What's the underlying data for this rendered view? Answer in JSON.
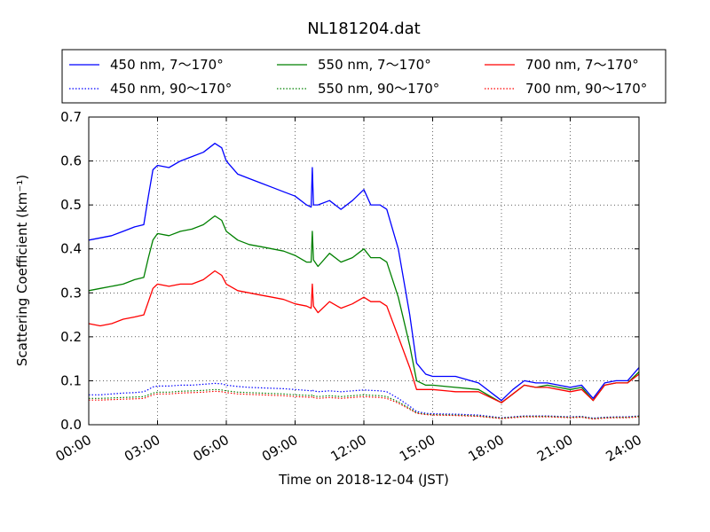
{
  "chart_data": {
    "type": "line",
    "title": "NL181204.dat",
    "xlabel": "Time on 2018-12-04 (JST)",
    "ylabel": "Scattering Coefficient (km⁻¹)",
    "xlim": [
      "00:00",
      "24:00"
    ],
    "ylim": [
      0.0,
      0.7
    ],
    "x_ticks": [
      "00:00",
      "03:00",
      "06:00",
      "09:00",
      "12:00",
      "15:00",
      "18:00",
      "21:00",
      "24:00"
    ],
    "y_ticks": [
      "0.0",
      "0.1",
      "0.2",
      "0.3",
      "0.4",
      "0.5",
      "0.6",
      "0.7"
    ],
    "grid": true,
    "legend_position": "top (above plot)",
    "x_hours": [
      0,
      0.5,
      1,
      1.5,
      2,
      2.4,
      2.6,
      2.8,
      3,
      3.5,
      4,
      4.5,
      5,
      5.5,
      5.8,
      6,
      6.5,
      7,
      7.5,
      8,
      8.5,
      9,
      9.5,
      9.7,
      9.75,
      9.8,
      10,
      10.5,
      11,
      11.5,
      12,
      12.3,
      12.7,
      13,
      13.5,
      14,
      14.3,
      14.7,
      15,
      16,
      17,
      18,
      18.5,
      19,
      19.5,
      20,
      20.5,
      21,
      21.5,
      22,
      22.5,
      23,
      23.5,
      24
    ],
    "series": [
      {
        "name": "450 nm, 7～170°",
        "color": "#0000ff",
        "style": "solid",
        "values": [
          0.42,
          0.425,
          0.43,
          0.44,
          0.45,
          0.455,
          0.52,
          0.58,
          0.59,
          0.585,
          0.6,
          0.61,
          0.62,
          0.64,
          0.63,
          0.6,
          0.57,
          0.56,
          0.55,
          0.54,
          0.53,
          0.52,
          0.5,
          0.495,
          0.585,
          0.5,
          0.5,
          0.51,
          0.49,
          0.51,
          0.535,
          0.5,
          0.5,
          0.49,
          0.4,
          0.25,
          0.14,
          0.115,
          0.11,
          0.11,
          0.095,
          0.055,
          0.08,
          0.1,
          0.095,
          0.095,
          0.09,
          0.085,
          0.09,
          0.06,
          0.095,
          0.1,
          0.1,
          0.13
        ]
      },
      {
        "name": "550 nm, 7～170°",
        "color": "#008000",
        "style": "solid",
        "values": [
          0.305,
          0.31,
          0.315,
          0.32,
          0.33,
          0.335,
          0.38,
          0.42,
          0.435,
          0.43,
          0.44,
          0.445,
          0.455,
          0.475,
          0.465,
          0.44,
          0.42,
          0.41,
          0.405,
          0.4,
          0.395,
          0.385,
          0.37,
          0.37,
          0.44,
          0.375,
          0.36,
          0.39,
          0.37,
          0.38,
          0.4,
          0.38,
          0.38,
          0.37,
          0.29,
          0.18,
          0.1,
          0.09,
          0.09,
          0.085,
          0.08,
          0.05,
          0.07,
          0.09,
          0.085,
          0.09,
          0.085,
          0.08,
          0.085,
          0.055,
          0.09,
          0.095,
          0.095,
          0.12
        ]
      },
      {
        "name": "700 nm, 7～170°",
        "color": "#ff0000",
        "style": "solid",
        "values": [
          0.23,
          0.225,
          0.23,
          0.24,
          0.245,
          0.25,
          0.28,
          0.31,
          0.32,
          0.315,
          0.32,
          0.32,
          0.33,
          0.35,
          0.34,
          0.32,
          0.305,
          0.3,
          0.295,
          0.29,
          0.285,
          0.275,
          0.27,
          0.265,
          0.32,
          0.27,
          0.255,
          0.28,
          0.265,
          0.275,
          0.29,
          0.28,
          0.28,
          0.27,
          0.2,
          0.13,
          0.08,
          0.08,
          0.08,
          0.075,
          0.075,
          0.05,
          0.07,
          0.09,
          0.085,
          0.085,
          0.08,
          0.075,
          0.08,
          0.055,
          0.09,
          0.095,
          0.095,
          0.115
        ]
      },
      {
        "name": "450 nm, 90～170°",
        "color": "#0000ff",
        "style": "dotted",
        "values": [
          0.068,
          0.068,
          0.07,
          0.072,
          0.073,
          0.075,
          0.08,
          0.086,
          0.088,
          0.088,
          0.09,
          0.09,
          0.092,
          0.094,
          0.093,
          0.09,
          0.087,
          0.085,
          0.084,
          0.083,
          0.082,
          0.08,
          0.078,
          0.077,
          0.08,
          0.077,
          0.075,
          0.077,
          0.075,
          0.077,
          0.079,
          0.078,
          0.077,
          0.075,
          0.06,
          0.042,
          0.03,
          0.026,
          0.025,
          0.024,
          0.022,
          0.016,
          0.018,
          0.02,
          0.02,
          0.02,
          0.019,
          0.018,
          0.019,
          0.015,
          0.017,
          0.018,
          0.018,
          0.02
        ]
      },
      {
        "name": "550 nm, 90～170°",
        "color": "#008000",
        "style": "dotted",
        "values": [
          0.06,
          0.06,
          0.061,
          0.062,
          0.063,
          0.064,
          0.068,
          0.072,
          0.074,
          0.074,
          0.076,
          0.077,
          0.078,
          0.08,
          0.079,
          0.077,
          0.074,
          0.073,
          0.072,
          0.071,
          0.07,
          0.068,
          0.067,
          0.066,
          0.069,
          0.066,
          0.064,
          0.066,
          0.064,
          0.066,
          0.068,
          0.067,
          0.066,
          0.064,
          0.052,
          0.037,
          0.027,
          0.024,
          0.023,
          0.022,
          0.02,
          0.015,
          0.017,
          0.019,
          0.019,
          0.019,
          0.018,
          0.017,
          0.018,
          0.014,
          0.016,
          0.017,
          0.017,
          0.019
        ]
      },
      {
        "name": "700 nm, 90～170°",
        "color": "#ff0000",
        "style": "dotted",
        "values": [
          0.056,
          0.056,
          0.057,
          0.058,
          0.059,
          0.06,
          0.064,
          0.068,
          0.07,
          0.07,
          0.072,
          0.073,
          0.074,
          0.076,
          0.075,
          0.073,
          0.07,
          0.069,
          0.068,
          0.067,
          0.066,
          0.064,
          0.063,
          0.062,
          0.065,
          0.062,
          0.06,
          0.062,
          0.06,
          0.062,
          0.064,
          0.063,
          0.062,
          0.06,
          0.049,
          0.035,
          0.026,
          0.023,
          0.022,
          0.021,
          0.019,
          0.014,
          0.016,
          0.018,
          0.018,
          0.018,
          0.017,
          0.016,
          0.017,
          0.013,
          0.015,
          0.016,
          0.016,
          0.018
        ]
      }
    ]
  }
}
